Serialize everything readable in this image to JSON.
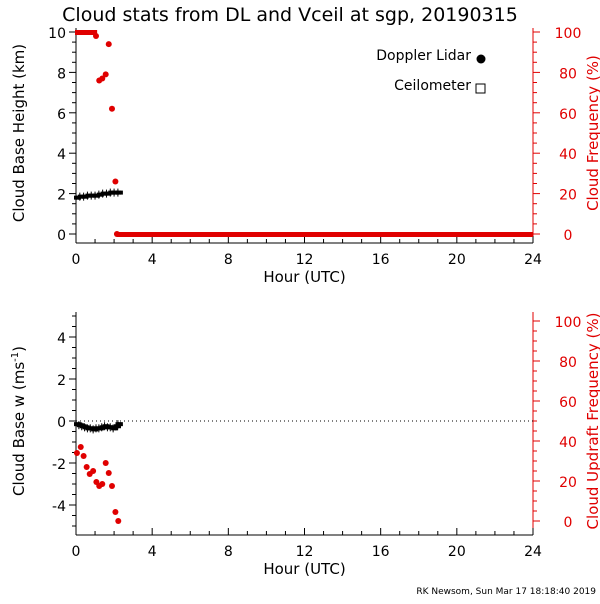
{
  "title": "Cloud stats from DL and Vceil at sgp, 20190315",
  "footer": "RK Newsom, Sun Mar 17 18:18:40 2019",
  "colors": {
    "dl": "#000000",
    "freq": "#e00000"
  },
  "chart_data": [
    {
      "type": "scatter",
      "xlabel": "Hour (UTC)",
      "ylabel": "Cloud Base Height (km)",
      "y2label": "Cloud Frequency (%)",
      "xlim": [
        0,
        24
      ],
      "ylim": [
        0,
        10
      ],
      "y2lim": [
        0,
        100
      ],
      "xticks": [
        "0",
        "4",
        "8",
        "12",
        "16",
        "20",
        "24"
      ],
      "yticks": [
        "0",
        "2",
        "4",
        "6",
        "8",
        "10"
      ],
      "y2ticks": [
        "0",
        "20",
        "40",
        "60",
        "80",
        "100"
      ],
      "legend": [
        "Doppler Lidar",
        "Ceilometer"
      ],
      "legend_placement": "top-right",
      "series": [
        {
          "name": "Doppler Lidar",
          "axis": "left",
          "x": [
            0,
            0.2,
            0.4,
            0.6,
            0.8,
            1.0,
            1.2,
            1.4,
            1.6,
            1.8,
            2.0,
            2.2
          ],
          "y": [
            1.8,
            1.85,
            1.85,
            1.9,
            1.9,
            1.9,
            1.95,
            2.0,
            2.0,
            2.05,
            2.05,
            2.05
          ]
        },
        {
          "name": "Cloud Frequency",
          "axis": "right",
          "x": [
            0,
            0.1,
            0.2,
            0.3,
            0.4,
            0.5,
            0.6,
            0.7,
            0.8,
            0.9,
            1.05,
            1.22,
            1.38,
            1.56,
            1.72,
            1.89,
            2.07,
            2.15
          ],
          "y": [
            100,
            100,
            100,
            100,
            100,
            100,
            100,
            100,
            100,
            100,
            98,
            76,
            77,
            79,
            94,
            62,
            26,
            0
          ],
          "zero_after": 2.15
        }
      ]
    },
    {
      "type": "scatter",
      "xlabel": "Hour (UTC)",
      "ylabel": "Cloud Base w (ms",
      "ylabel_sup": "-1",
      "ylabel_end": ")",
      "y2label": "Cloud Updraft Frequency (%)",
      "xlim": [
        0,
        24
      ],
      "ylim": [
        -5,
        5
      ],
      "y2lim": [
        0,
        100
      ],
      "xticks": [
        "0",
        "4",
        "8",
        "12",
        "16",
        "20",
        "24"
      ],
      "yticks": [
        "-4",
        "-2",
        "0",
        "2",
        "4"
      ],
      "y2ticks": [
        "0",
        "20",
        "40",
        "60",
        "80",
        "100"
      ],
      "series": [
        {
          "name": "Cloud Base w",
          "axis": "left",
          "x": [
            0,
            0.15,
            0.3,
            0.45,
            0.6,
            0.75,
            0.9,
            1.05,
            1.2,
            1.35,
            1.5,
            1.65,
            1.8,
            1.95,
            2.1,
            2.2
          ],
          "y": [
            -0.15,
            -0.2,
            -0.25,
            -0.3,
            -0.35,
            -0.35,
            -0.4,
            -0.35,
            -0.35,
            -0.3,
            -0.25,
            -0.3,
            -0.3,
            -0.35,
            -0.25,
            -0.15
          ]
        },
        {
          "name": "Cloud Updraft Frequency",
          "axis": "right",
          "x": [
            0.05,
            0.25,
            0.4,
            0.56,
            0.72,
            0.9,
            1.07,
            1.22,
            1.38,
            1.56,
            1.72,
            1.89,
            2.07,
            2.22
          ],
          "y": [
            34,
            37,
            32.5,
            27,
            23.5,
            25,
            19.5,
            17.5,
            18.5,
            29,
            24,
            17.5,
            4.5,
            0
          ]
        }
      ]
    }
  ]
}
